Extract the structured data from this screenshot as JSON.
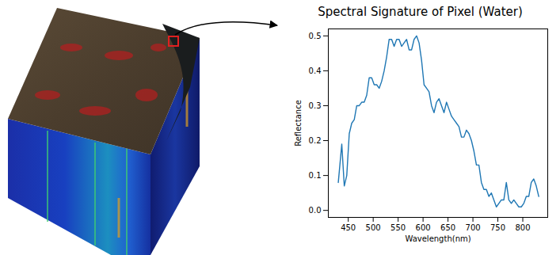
{
  "chart_data": {
    "type": "line",
    "title": "Spectral Signature of Pixel (Water)",
    "x_label": "Wavelength(nm)",
    "y_label": "Reflectance",
    "color": "#1f77b4",
    "x": [
      430,
      437,
      442,
      447,
      452,
      457,
      462,
      467,
      472,
      477,
      482,
      487,
      492,
      497,
      502,
      507,
      512,
      517,
      522,
      527,
      532,
      537,
      542,
      547,
      552,
      557,
      562,
      567,
      572,
      577,
      582,
      587,
      592,
      597,
      602,
      607,
      612,
      617,
      622,
      627,
      632,
      637,
      642,
      647,
      652,
      657,
      662,
      667,
      672,
      677,
      682,
      687,
      692,
      697,
      702,
      707,
      712,
      717,
      722,
      727,
      732,
      737,
      742,
      747,
      752,
      757,
      762,
      767,
      772,
      777,
      782,
      787,
      792,
      797,
      802,
      807,
      812,
      817,
      822,
      827,
      832
    ],
    "values": [
      0.08,
      0.19,
      0.07,
      0.1,
      0.22,
      0.25,
      0.26,
      0.3,
      0.3,
      0.31,
      0.31,
      0.33,
      0.38,
      0.38,
      0.36,
      0.36,
      0.35,
      0.37,
      0.4,
      0.44,
      0.49,
      0.49,
      0.47,
      0.49,
      0.49,
      0.47,
      0.48,
      0.49,
      0.46,
      0.46,
      0.49,
      0.5,
      0.48,
      0.43,
      0.36,
      0.35,
      0.34,
      0.3,
      0.28,
      0.31,
      0.32,
      0.3,
      0.28,
      0.31,
      0.29,
      0.27,
      0.26,
      0.25,
      0.24,
      0.21,
      0.21,
      0.23,
      0.22,
      0.2,
      0.17,
      0.13,
      0.13,
      0.08,
      0.06,
      0.06,
      0.04,
      0.05,
      0.03,
      0.01,
      0.02,
      0.03,
      0.03,
      0.08,
      0.03,
      0.02,
      0.03,
      0.02,
      0.01,
      0.01,
      0.02,
      0.04,
      0.04,
      0.08,
      0.09,
      0.07,
      0.04
    ],
    "xlim": [
      410,
      850
    ],
    "xticks": [
      450,
      500,
      550,
      600,
      650,
      700,
      750,
      800
    ],
    "ylim": [
      -0.02,
      0.52
    ],
    "yticks": [
      {
        "value": 0,
        "label": "0.0"
      },
      0.1,
      0.2,
      0.3,
      0.4,
      0.5
    ],
    "grid": false
  }
}
